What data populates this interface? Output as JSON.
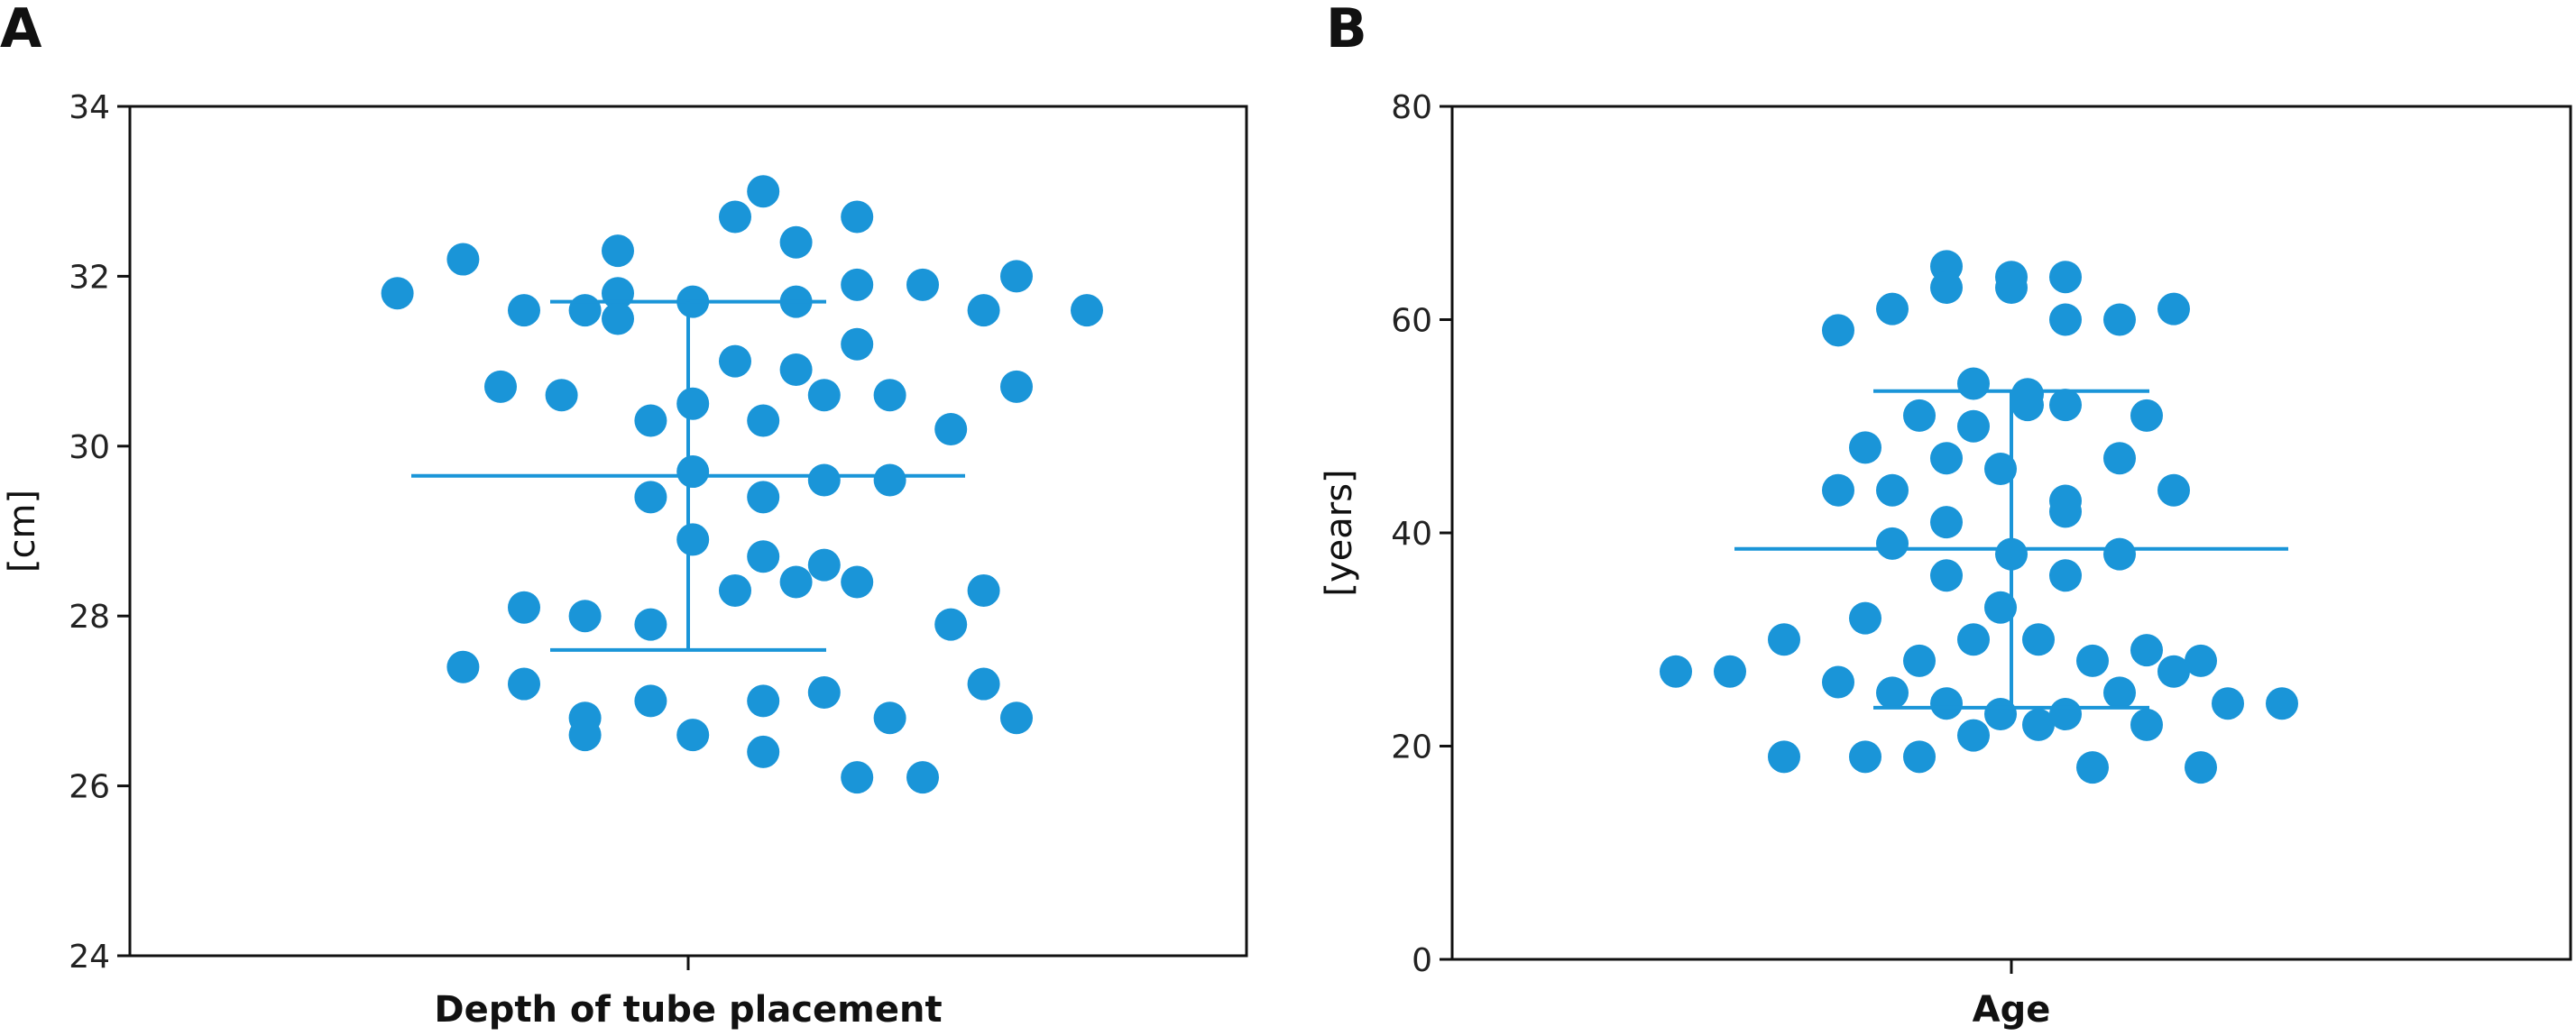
{
  "colors": {
    "accent": "#1a95d8",
    "axis": "#111111"
  },
  "panel_labels": [
    "A",
    "B"
  ],
  "chart_data": [
    {
      "type": "scatter",
      "panel": "A",
      "title": "",
      "xlabel": "Depth of tube placement",
      "ylabel": "[cm]",
      "ylim": [
        24,
        34
      ],
      "yticks": [
        24,
        26,
        28,
        30,
        32,
        34
      ],
      "ytick_labels": [
        "24",
        "26",
        "28",
        "30",
        "32",
        "34"
      ],
      "grid": false,
      "mean": 29.65,
      "sd_upper": 31.7,
      "sd_lower": 27.6,
      "points": [
        {
          "x": -0.62,
          "y": 31.8
        },
        {
          "x": -0.48,
          "y": 32.2
        },
        {
          "x": -0.35,
          "y": 31.6
        },
        {
          "x": -0.22,
          "y": 31.6
        },
        {
          "x": -0.15,
          "y": 31.8
        },
        {
          "x": -0.15,
          "y": 31.5
        },
        {
          "x": -0.15,
          "y": 32.3
        },
        {
          "x": 0.01,
          "y": 31.7
        },
        {
          "x": 0.1,
          "y": 32.7
        },
        {
          "x": 0.16,
          "y": 33.0
        },
        {
          "x": 0.23,
          "y": 32.4
        },
        {
          "x": 0.23,
          "y": 31.7
        },
        {
          "x": 0.36,
          "y": 32.7
        },
        {
          "x": 0.36,
          "y": 31.9
        },
        {
          "x": 0.5,
          "y": 31.9
        },
        {
          "x": 0.63,
          "y": 31.6
        },
        {
          "x": 0.7,
          "y": 32.0
        },
        {
          "x": 0.85,
          "y": 31.6
        },
        {
          "x": 0.1,
          "y": 31.0
        },
        {
          "x": 0.23,
          "y": 30.9
        },
        {
          "x": 0.36,
          "y": 31.2
        },
        {
          "x": -0.4,
          "y": 30.7
        },
        {
          "x": -0.27,
          "y": 30.6
        },
        {
          "x": -0.08,
          "y": 30.3
        },
        {
          "x": 0.01,
          "y": 30.5
        },
        {
          "x": 0.16,
          "y": 30.3
        },
        {
          "x": 0.29,
          "y": 30.6
        },
        {
          "x": 0.43,
          "y": 30.6
        },
        {
          "x": 0.56,
          "y": 30.2
        },
        {
          "x": 0.7,
          "y": 30.7
        },
        {
          "x": -0.08,
          "y": 29.4
        },
        {
          "x": 0.01,
          "y": 29.7
        },
        {
          "x": 0.16,
          "y": 29.4
        },
        {
          "x": 0.29,
          "y": 29.6
        },
        {
          "x": 0.43,
          "y": 29.6
        },
        {
          "x": 0.01,
          "y": 28.9
        },
        {
          "x": 0.16,
          "y": 28.7
        },
        {
          "x": 0.29,
          "y": 28.6
        },
        {
          "x": 0.1,
          "y": 28.3
        },
        {
          "x": 0.23,
          "y": 28.4
        },
        {
          "x": 0.36,
          "y": 28.4
        },
        {
          "x": 0.63,
          "y": 28.3
        },
        {
          "x": -0.35,
          "y": 28.1
        },
        {
          "x": -0.22,
          "y": 28.0
        },
        {
          "x": -0.08,
          "y": 27.9
        },
        {
          "x": 0.56,
          "y": 27.9
        },
        {
          "x": -0.48,
          "y": 27.4
        },
        {
          "x": -0.35,
          "y": 27.2
        },
        {
          "x": -0.22,
          "y": 26.8
        },
        {
          "x": -0.22,
          "y": 26.6
        },
        {
          "x": -0.08,
          "y": 27.0
        },
        {
          "x": 0.01,
          "y": 26.6
        },
        {
          "x": 0.16,
          "y": 27.0
        },
        {
          "x": 0.16,
          "y": 26.4
        },
        {
          "x": 0.29,
          "y": 27.1
        },
        {
          "x": 0.36,
          "y": 26.1
        },
        {
          "x": 0.43,
          "y": 26.8
        },
        {
          "x": 0.5,
          "y": 26.1
        },
        {
          "x": 0.63,
          "y": 27.2
        },
        {
          "x": 0.7,
          "y": 26.8
        }
      ]
    },
    {
      "type": "scatter",
      "panel": "B",
      "title": "",
      "xlabel": "Age",
      "ylabel": "[years]",
      "ylim": [
        0,
        80
      ],
      "yticks": [
        0,
        20,
        40,
        60,
        80
      ],
      "ytick_labels": [
        "0",
        "20",
        "40",
        "60",
        "80"
      ],
      "grid": false,
      "mean": 38.5,
      "sd_upper": 53.3,
      "sd_lower": 23.6,
      "points": [
        {
          "x": -0.62,
          "y": 27
        },
        {
          "x": -0.52,
          "y": 27
        },
        {
          "x": -0.42,
          "y": 30
        },
        {
          "x": -0.42,
          "y": 19
        },
        {
          "x": -0.32,
          "y": 59
        },
        {
          "x": -0.32,
          "y": 44
        },
        {
          "x": -0.32,
          "y": 26
        },
        {
          "x": -0.27,
          "y": 48
        },
        {
          "x": -0.27,
          "y": 32
        },
        {
          "x": -0.27,
          "y": 19
        },
        {
          "x": -0.22,
          "y": 61
        },
        {
          "x": -0.22,
          "y": 44
        },
        {
          "x": -0.22,
          "y": 39
        },
        {
          "x": -0.22,
          "y": 25
        },
        {
          "x": -0.17,
          "y": 51
        },
        {
          "x": -0.17,
          "y": 28
        },
        {
          "x": -0.17,
          "y": 19
        },
        {
          "x": -0.12,
          "y": 65
        },
        {
          "x": -0.12,
          "y": 63
        },
        {
          "x": -0.12,
          "y": 47
        },
        {
          "x": -0.12,
          "y": 41
        },
        {
          "x": -0.12,
          "y": 36
        },
        {
          "x": -0.12,
          "y": 24
        },
        {
          "x": -0.07,
          "y": 54
        },
        {
          "x": -0.07,
          "y": 50
        },
        {
          "x": -0.07,
          "y": 30
        },
        {
          "x": -0.07,
          "y": 21
        },
        {
          "x": -0.02,
          "y": 46
        },
        {
          "x": -0.02,
          "y": 33
        },
        {
          "x": -0.02,
          "y": 23
        },
        {
          "x": 0.0,
          "y": 64
        },
        {
          "x": 0.0,
          "y": 63
        },
        {
          "x": 0.0,
          "y": 38
        },
        {
          "x": 0.03,
          "y": 53
        },
        {
          "x": 0.03,
          "y": 52
        },
        {
          "x": 0.05,
          "y": 30
        },
        {
          "x": 0.05,
          "y": 22
        },
        {
          "x": 0.1,
          "y": 64
        },
        {
          "x": 0.1,
          "y": 60
        },
        {
          "x": 0.1,
          "y": 52
        },
        {
          "x": 0.1,
          "y": 43
        },
        {
          "x": 0.1,
          "y": 42
        },
        {
          "x": 0.1,
          "y": 36
        },
        {
          "x": 0.1,
          "y": 23
        },
        {
          "x": 0.15,
          "y": 28
        },
        {
          "x": 0.15,
          "y": 18
        },
        {
          "x": 0.2,
          "y": 60
        },
        {
          "x": 0.2,
          "y": 47
        },
        {
          "x": 0.2,
          "y": 38
        },
        {
          "x": 0.2,
          "y": 25
        },
        {
          "x": 0.25,
          "y": 51
        },
        {
          "x": 0.25,
          "y": 29
        },
        {
          "x": 0.25,
          "y": 22
        },
        {
          "x": 0.3,
          "y": 61
        },
        {
          "x": 0.3,
          "y": 44
        },
        {
          "x": 0.3,
          "y": 27
        },
        {
          "x": 0.35,
          "y": 28
        },
        {
          "x": 0.35,
          "y": 18
        },
        {
          "x": 0.4,
          "y": 24
        },
        {
          "x": 0.5,
          "y": 24
        }
      ]
    }
  ]
}
